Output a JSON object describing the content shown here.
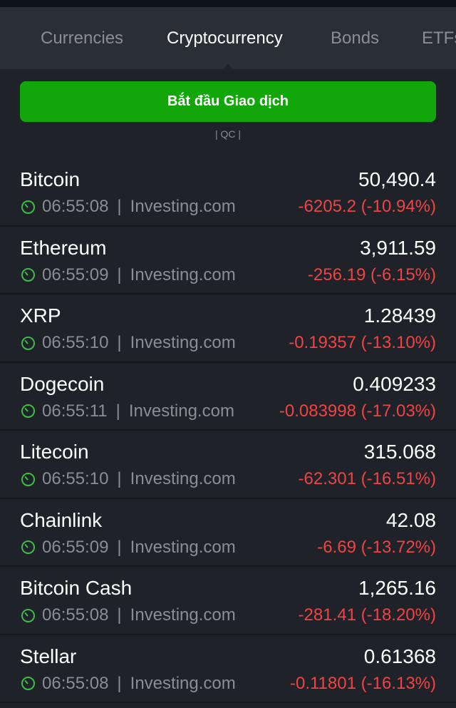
{
  "tabs": [
    {
      "label": "Currencies"
    },
    {
      "label": "Cryptocurrency"
    },
    {
      "label": "Bonds"
    },
    {
      "label": "ETFs"
    }
  ],
  "active_tab": "Cryptocurrency",
  "cta": {
    "label": "Bắt đầu Giao dịch",
    "color": "#12a60a"
  },
  "ad_label": "| QC |",
  "colors": {
    "negative": "#ef4444",
    "clock": "#3cbd45"
  },
  "items": [
    {
      "name": "Bitcoin",
      "price": "50,490.4",
      "time": "06:55:08",
      "source": "Investing.com",
      "change": "-6205.2 (-10.94%)"
    },
    {
      "name": "Ethereum",
      "price": "3,911.59",
      "time": "06:55:09",
      "source": "Investing.com",
      "change": "-256.19 (-6.15%)"
    },
    {
      "name": "XRP",
      "price": "1.28439",
      "time": "06:55:10",
      "source": "Investing.com",
      "change": "-0.19357 (-13.10%)"
    },
    {
      "name": "Dogecoin",
      "price": "0.409233",
      "time": "06:55:11",
      "source": "Investing.com",
      "change": "-0.083998 (-17.03%)"
    },
    {
      "name": "Litecoin",
      "price": "315.068",
      "time": "06:55:10",
      "source": "Investing.com",
      "change": "-62.301 (-16.51%)"
    },
    {
      "name": "Chainlink",
      "price": "42.08",
      "time": "06:55:09",
      "source": "Investing.com",
      "change": "-6.69 (-13.72%)"
    },
    {
      "name": "Bitcoin Cash",
      "price": "1,265.16",
      "time": "06:55:08",
      "source": "Investing.com",
      "change": "-281.41 (-18.20%)"
    },
    {
      "name": "Stellar",
      "price": "0.61368",
      "time": "06:55:08",
      "source": "Investing.com",
      "change": "-0.11801 (-16.13%)"
    }
  ]
}
